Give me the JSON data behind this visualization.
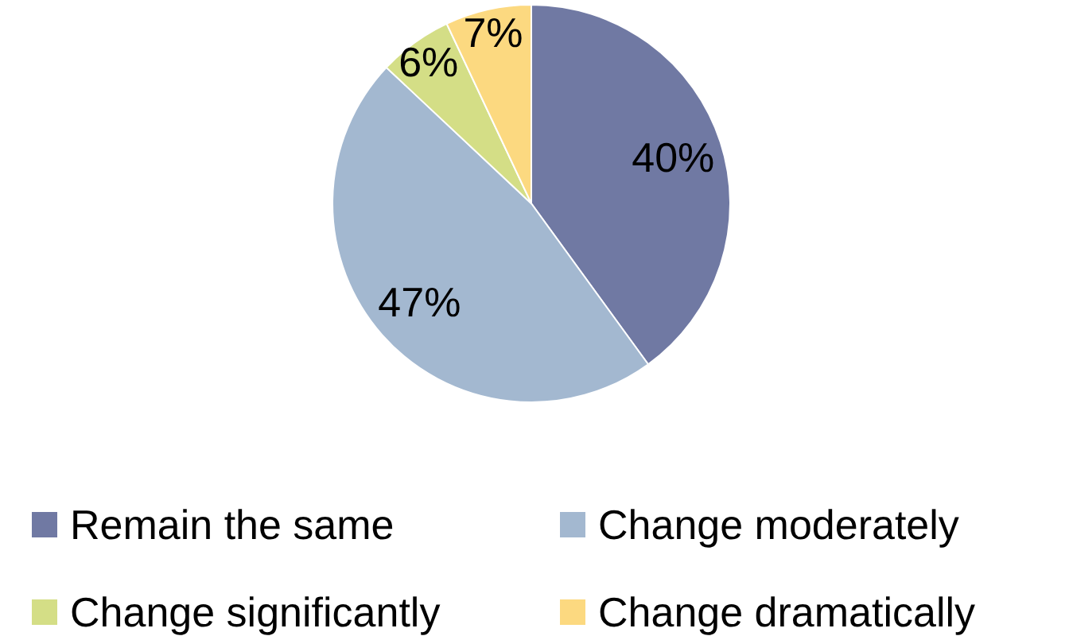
{
  "chart_data": {
    "type": "pie",
    "categories": [
      "Remain the same",
      "Change moderately",
      "Change significantly",
      "Change dramatically"
    ],
    "values": [
      40,
      47,
      6,
      7
    ],
    "colors": [
      "#7079a3",
      "#a3b8d0",
      "#d4de86",
      "#fcd980"
    ],
    "value_labels": [
      "40%",
      "47%",
      "6%",
      "7%"
    ],
    "legend": "bottom"
  }
}
